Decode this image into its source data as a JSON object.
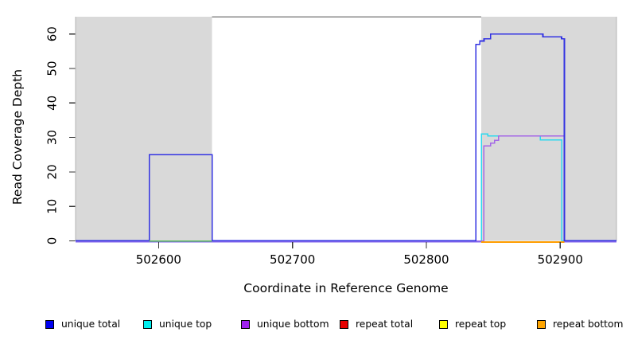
{
  "chart_data": {
    "type": "line",
    "subtype": "step-coverage-plot",
    "title": "",
    "xlabel": "Coordinate in Reference Genome",
    "ylabel": "Read Coverage Depth",
    "xlim": [
      502538,
      502942
    ],
    "ylim": [
      0,
      65
    ],
    "x_ticks": [
      "502600",
      "502700",
      "502800",
      "502900"
    ],
    "x_tick_values": [
      502600,
      502700,
      502800,
      502900
    ],
    "y_ticks": [
      "0",
      "10",
      "20",
      "30",
      "40",
      "50",
      "60"
    ],
    "y_tick_values": [
      0,
      10,
      20,
      30,
      40,
      50,
      60
    ],
    "grid": false,
    "legend_position": "bottom",
    "plot_background": "#ffffff",
    "shaded_regions": [
      {
        "x0": 502538,
        "x1": 502640,
        "color": "#d9d9d9"
      },
      {
        "x0": 502841,
        "x1": 502942,
        "color": "#d9d9d9"
      }
    ],
    "top_border_segment": {
      "x0": 502640,
      "x1": 502841,
      "y": 65,
      "color": "#8a8a8a"
    },
    "series": [
      {
        "name": "unique top",
        "color": "#2bd9ee",
        "width": 1.5,
        "points": [
          [
            502538,
            0
          ],
          [
            502841,
            0
          ],
          [
            502841,
            31
          ],
          [
            502846,
            31
          ],
          [
            502846,
            30.4
          ],
          [
            502885,
            30.4
          ],
          [
            502885,
            29.3
          ],
          [
            502901,
            29.3
          ],
          [
            502901,
            0
          ],
          [
            502942,
            0
          ]
        ]
      },
      {
        "name": "unique bottom",
        "color": "#a467e6",
        "width": 1.5,
        "points": [
          [
            502538,
            0
          ],
          [
            502843,
            0
          ],
          [
            502843,
            27.5
          ],
          [
            502848,
            27.5
          ],
          [
            502848,
            28.4
          ],
          [
            502851,
            28.4
          ],
          [
            502851,
            29.2
          ],
          [
            502854,
            29.2
          ],
          [
            502854,
            30.4
          ],
          [
            502903,
            30.4
          ],
          [
            502903,
            0
          ],
          [
            502942,
            0
          ]
        ]
      },
      {
        "name": "unique total",
        "color": "#3232e2",
        "width": 1.7,
        "points": [
          [
            502538,
            0
          ],
          [
            502593,
            0
          ],
          [
            502593,
            25
          ],
          [
            502640,
            25
          ],
          [
            502640,
            0
          ],
          [
            502837,
            0
          ],
          [
            502837,
            57
          ],
          [
            502840,
            57
          ],
          [
            502840,
            58
          ],
          [
            502843,
            58
          ],
          [
            502843,
            58.6
          ],
          [
            502848,
            58.6
          ],
          [
            502848,
            60
          ],
          [
            502887,
            60
          ],
          [
            502887,
            59.2
          ],
          [
            502901,
            59.2
          ],
          [
            502901,
            58.6
          ],
          [
            502903,
            58.6
          ],
          [
            502903,
            0
          ],
          [
            502942,
            0
          ]
        ]
      },
      {
        "name": "zero-line fringe",
        "color": "#8468ec",
        "width": 1.1,
        "points": [
          [
            502538,
            -0.28
          ],
          [
            502942,
            -0.28
          ]
        ]
      },
      {
        "name": "green zero segment",
        "color": "#5abd5a",
        "width": 1.5,
        "points": [
          [
            502593,
            -0.1
          ],
          [
            502640,
            -0.1
          ]
        ]
      },
      {
        "name": "repeat bottom",
        "color": "#ff9e00",
        "width": 1.7,
        "points": [
          [
            502841,
            -0.35
          ],
          [
            502903,
            -0.35
          ]
        ]
      }
    ]
  },
  "legend": {
    "items": [
      {
        "label": "unique total",
        "color": "#0000f0"
      },
      {
        "label": "unique top",
        "color": "#00eeee"
      },
      {
        "label": "unique bottom",
        "color": "#a020f0"
      },
      {
        "label": "repeat total",
        "color": "#e60000"
      },
      {
        "label": "repeat top",
        "color": "#ffff00"
      },
      {
        "label": "repeat bottom",
        "color": "#ffa500"
      }
    ]
  }
}
